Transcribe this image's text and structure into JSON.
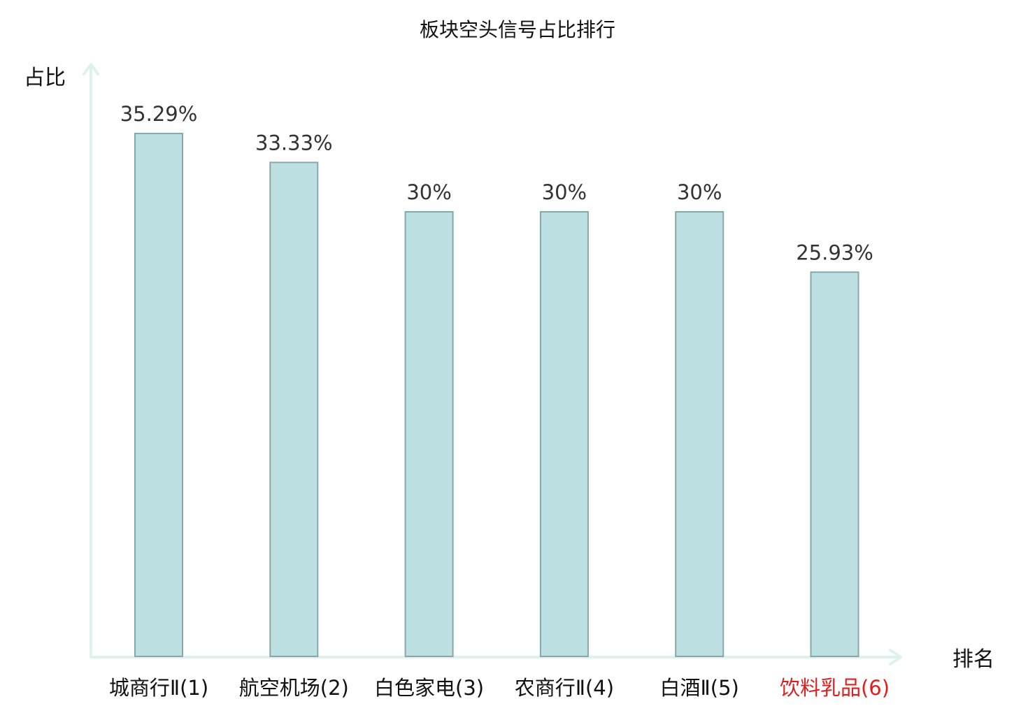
{
  "chart_data": {
    "type": "bar",
    "title": "板块空头信号占比排行",
    "ylabel": "占比",
    "xlabel": "排名",
    "categories": [
      "城商行Ⅱ(1)",
      "航空机场(2)",
      "白色家电(3)",
      "农商行Ⅱ(4)",
      "白酒Ⅱ(5)",
      "饮料乳品(6)"
    ],
    "values": [
      35.29,
      33.33,
      30,
      30,
      30,
      25.93
    ],
    "value_labels": [
      "35.29%",
      "33.33%",
      "30%",
      "30%",
      "30%",
      "25.93%"
    ],
    "highlight_index": 5,
    "ylim": [
      0,
      40
    ],
    "grid": false,
    "legend": "none"
  },
  "colors": {
    "bar_fill": "#bde0e2",
    "bar_stroke": "#86a8aa",
    "axis": "#dff1ee",
    "label": "#111111",
    "highlight_label": "#e01e1e",
    "value_label": "#333333"
  }
}
